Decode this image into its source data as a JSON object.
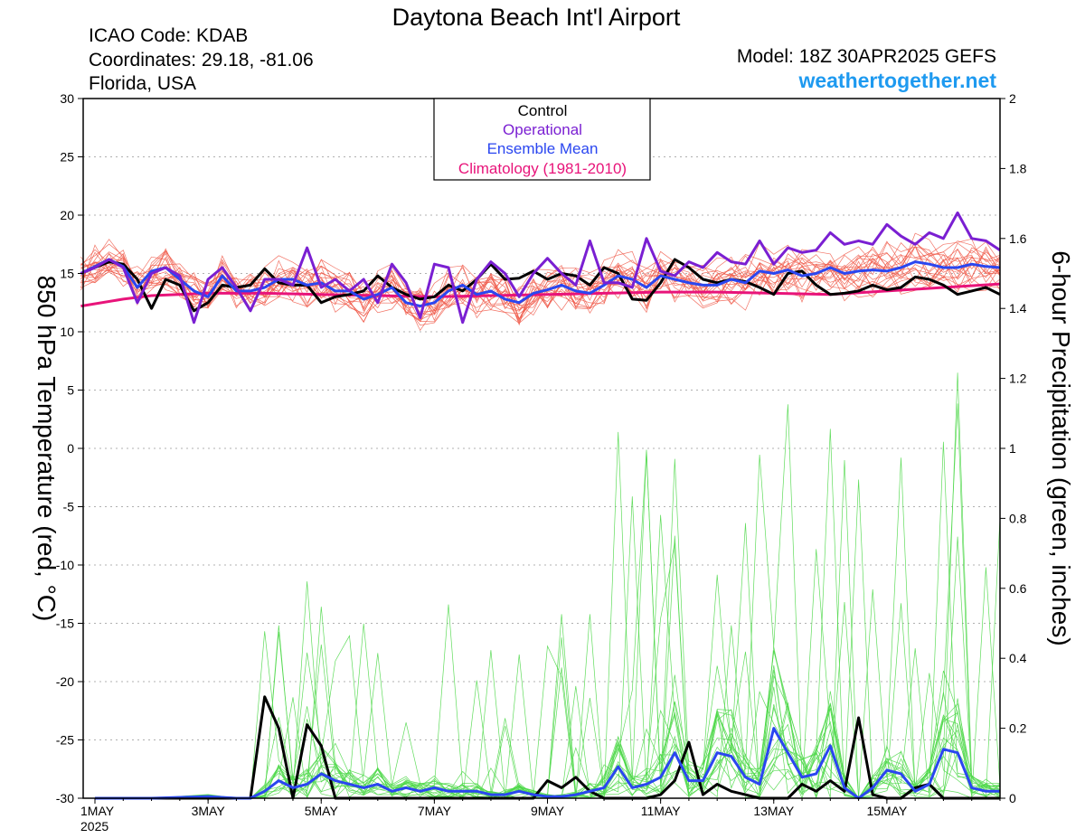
{
  "header": {
    "title": "Daytona Beach Int'l Airport",
    "icao": "ICAO Code: KDAB",
    "coords": "Coordinates: 29.18, -81.06",
    "region": "Florida, USA",
    "model": "Model: 18Z 30APR2025 GEFS",
    "site": "weathertogether.net"
  },
  "colors": {
    "control": "#000000",
    "operational": "#7a1fd2",
    "ensemble_mean": "#2a46f0",
    "climatology": "#e8147a",
    "members_temp": "#f05a4a",
    "members_precip": "#4fd84a",
    "site": "#1e9af0"
  },
  "chart_data": {
    "type": "line",
    "ylabel": "850 hPa Temperature (red, °C)",
    "ylabel_right": "6-hour Precipitation (green, inches)",
    "ylim": [
      -30,
      30
    ],
    "ylim_right": [
      0,
      2
    ],
    "yticks": [
      "30",
      "25",
      "20",
      "15",
      "10",
      "5",
      "0",
      "-5",
      "-10",
      "-15",
      "-20",
      "-25",
      "-30"
    ],
    "yticks_right": [
      "2",
      "1.8",
      "1.6",
      "1.4",
      "1.2",
      "1",
      "0.8",
      "0.6",
      "0.4",
      "0.2",
      "0"
    ],
    "x_range_days": [
      0,
      16
    ],
    "xticks": [
      {
        "day": 0,
        "label": "1MAY",
        "sub": "2025"
      },
      {
        "day": 2,
        "label": "3MAY"
      },
      {
        "day": 4,
        "label": "5MAY"
      },
      {
        "day": 6,
        "label": "7MAY"
      },
      {
        "day": 8,
        "label": "9MAY"
      },
      {
        "day": 10,
        "label": "11MAY"
      },
      {
        "day": 12,
        "label": "13MAY"
      },
      {
        "day": 14,
        "label": "15MAY"
      }
    ],
    "grid": true,
    "legend": {
      "placement": "top-center",
      "entries": [
        {
          "name": "Control",
          "color": "#000000"
        },
        {
          "name": "Operational",
          "color": "#7a1fd2"
        },
        {
          "name": "Ensemble Mean",
          "color": "#2a46f0"
        },
        {
          "name": "Climatology (1981-2010)",
          "color": "#e8147a"
        }
      ]
    },
    "series": [
      {
        "name": "Climatology (1981-2010)",
        "axis": "left",
        "color": "#e8147a",
        "x": [
          -0.25,
          0.5,
          1,
          2,
          3,
          4,
          5,
          6,
          7,
          8,
          9,
          10,
          11,
          12,
          13,
          14,
          15,
          16
        ],
        "values": [
          12.2,
          12.8,
          13.1,
          13.3,
          13.3,
          13.2,
          13.1,
          13.0,
          13.1,
          13.2,
          13.3,
          13.4,
          13.4,
          13.3,
          13.2,
          13.5,
          13.8,
          14.1
        ]
      },
      {
        "name": "Control",
        "axis": "left",
        "color": "#000000",
        "x": [
          -0.25,
          0,
          0.25,
          0.5,
          0.75,
          1,
          1.25,
          1.5,
          1.75,
          2,
          2.25,
          2.5,
          2.75,
          3,
          3.25,
          3.5,
          3.75,
          4,
          4.25,
          4.5,
          4.75,
          5,
          5.25,
          5.5,
          5.75,
          6,
          6.25,
          6.5,
          6.75,
          7,
          7.25,
          7.5,
          7.75,
          8,
          8.25,
          8.5,
          8.75,
          9,
          9.25,
          9.5,
          9.75,
          10,
          10.25,
          10.5,
          10.75,
          11,
          11.25,
          11.5,
          11.75,
          12,
          12.25,
          12.5,
          12.75,
          13,
          13.25,
          13.5,
          13.75,
          14,
          14.25,
          14.5,
          14.75,
          15,
          15.25,
          15.5,
          15.75,
          16
        ],
        "values": [
          15.0,
          15.5,
          16.0,
          15.8,
          14.5,
          12.0,
          14.5,
          14.0,
          11.8,
          12.5,
          14.0,
          13.8,
          14.0,
          15.4,
          14.2,
          14.0,
          14.0,
          12.5,
          13.0,
          13.2,
          13.5,
          14.8,
          13.8,
          13.2,
          12.8,
          13.0,
          14.0,
          13.5,
          14.5,
          15.8,
          14.5,
          14.6,
          15.2,
          14.5,
          15.0,
          14.8,
          14.0,
          15.5,
          15.0,
          12.8,
          12.7,
          14.2,
          16.2,
          15.5,
          14.5,
          14.2,
          14.5,
          14.3,
          13.8,
          13.2,
          15.0,
          15.2,
          14.0,
          13.2,
          13.3,
          13.5,
          14.0,
          13.6,
          13.8,
          14.7,
          14.5,
          14.0,
          13.2,
          13.5,
          13.8,
          13.2
        ]
      },
      {
        "name": "Ensemble Mean",
        "axis": "left",
        "color": "#2a46f0",
        "x": [
          -0.25,
          0,
          0.25,
          0.5,
          0.75,
          1,
          1.25,
          1.5,
          1.75,
          2,
          2.25,
          2.5,
          2.75,
          3,
          3.25,
          3.5,
          3.75,
          4,
          4.25,
          4.5,
          4.75,
          5,
          5.25,
          5.5,
          5.75,
          6,
          6.25,
          6.5,
          6.75,
          7,
          7.25,
          7.5,
          7.75,
          8,
          8.25,
          8.5,
          8.75,
          9,
          9.25,
          9.5,
          9.75,
          10,
          10.25,
          10.5,
          10.75,
          11,
          11.25,
          11.5,
          11.75,
          12,
          12.25,
          12.5,
          12.75,
          13,
          13.25,
          13.5,
          13.75,
          14,
          14.25,
          14.5,
          14.75,
          15,
          15.25,
          15.5,
          15.75,
          16
        ],
        "values": [
          15.0,
          15.6,
          16.2,
          15.6,
          13.8,
          15.2,
          15.5,
          14.5,
          13.5,
          13.0,
          14.8,
          13.5,
          13.5,
          13.8,
          14.5,
          14.5,
          14.0,
          14.2,
          13.5,
          13.5,
          12.8,
          13.2,
          13.8,
          12.5,
          12.2,
          12.5,
          13.5,
          14.0,
          13.2,
          13.5,
          12.8,
          12.5,
          13.3,
          13.6,
          14.0,
          13.5,
          13.3,
          14.0,
          14.8,
          14.5,
          13.8,
          14.8,
          14.5,
          14.2,
          14.0,
          14.0,
          14.5,
          14.2,
          15.2,
          15.0,
          15.3,
          14.8,
          15.0,
          15.5,
          15.0,
          15.2,
          15.3,
          15.2,
          15.5,
          16.0,
          15.8,
          15.5,
          15.5,
          15.8,
          15.6,
          15.5
        ]
      },
      {
        "name": "Operational",
        "axis": "left",
        "color": "#7a1fd2",
        "x": [
          -0.25,
          0,
          0.25,
          0.5,
          0.75,
          1,
          1.25,
          1.5,
          1.75,
          2,
          2.25,
          2.5,
          2.75,
          3,
          3.25,
          3.5,
          3.75,
          4,
          4.25,
          4.5,
          4.75,
          5,
          5.25,
          5.5,
          5.75,
          6,
          6.25,
          6.5,
          6.75,
          7,
          7.25,
          7.5,
          7.75,
          8,
          8.25,
          8.5,
          8.75,
          9,
          9.25,
          9.5,
          9.75,
          10,
          10.25,
          10.5,
          10.75,
          11,
          11.25,
          11.5,
          11.75,
          12,
          12.25,
          12.5,
          12.75,
          13,
          13.25,
          13.5,
          13.75,
          14,
          14.25,
          14.5,
          14.75,
          15,
          15.25,
          15.5,
          15.75,
          16
        ],
        "values": [
          15.0,
          15.5,
          16.2,
          15.5,
          12.5,
          15.0,
          15.5,
          14.8,
          10.8,
          14.5,
          15.5,
          13.8,
          11.8,
          14.5,
          14.5,
          14.0,
          17.2,
          13.8,
          14.5,
          13.5,
          14.5,
          12.5,
          15.8,
          14.2,
          11.2,
          15.8,
          15.5,
          10.8,
          14.5,
          16.0,
          15.0,
          13.0,
          15.0,
          16.3,
          15.0,
          14.0,
          17.8,
          14.2,
          14.2,
          13.8,
          18.0,
          15.2,
          14.8,
          16.0,
          15.5,
          16.8,
          16.0,
          15.8,
          17.8,
          15.8,
          17.2,
          16.8,
          17.0,
          18.5,
          17.5,
          17.8,
          17.5,
          19.2,
          18.2,
          17.5,
          18.5,
          18.0,
          20.2,
          18.0,
          17.8,
          17.0
        ]
      },
      {
        "name": "Control",
        "axis": "right",
        "color": "#000000",
        "x": [
          0,
          2,
          2.75,
          3,
          3.25,
          3.5,
          3.75,
          4,
          4.25,
          4.5,
          7.75,
          8,
          8.25,
          8.5,
          8.75,
          9,
          9.25,
          9.5,
          9.75,
          10,
          10.25,
          10.5,
          10.75,
          11,
          11.25,
          11.5,
          11.75,
          12,
          12.25,
          12.5,
          12.75,
          13,
          13.25,
          13.5,
          13.75,
          14,
          14.25,
          14.5,
          14.75,
          15,
          15.25,
          15.5,
          15.75,
          16
        ],
        "values": [
          0,
          0,
          0,
          0.29,
          0.2,
          0,
          0.21,
          0.15,
          0,
          0,
          0,
          0.05,
          0.03,
          0.06,
          0.02,
          0,
          0,
          0,
          0,
          0.01,
          0.05,
          0.16,
          0.01,
          0.04,
          0.02,
          0.01,
          0,
          0,
          0,
          0.04,
          0.02,
          0.05,
          0.02,
          0.23,
          0.01,
          0,
          0,
          0.03,
          0.04,
          0,
          0,
          0,
          0,
          0
        ]
      },
      {
        "name": "Ensemble Mean",
        "axis": "right",
        "color": "#2a46f0",
        "x": [
          0,
          1,
          2,
          2.5,
          2.75,
          3,
          3.25,
          3.5,
          3.75,
          4,
          4.25,
          4.5,
          4.75,
          5,
          5.25,
          5.5,
          5.75,
          6,
          6.25,
          6.5,
          6.75,
          7,
          7.25,
          7.5,
          7.75,
          8,
          8.25,
          8.5,
          8.75,
          9,
          9.25,
          9.5,
          9.75,
          10,
          10.25,
          10.5,
          10.75,
          11,
          11.25,
          11.5,
          11.75,
          12,
          12.25,
          12.5,
          12.75,
          13,
          13.25,
          13.5,
          13.75,
          14,
          14.25,
          14.5,
          14.75,
          15,
          15.25,
          15.5,
          15.75,
          16
        ],
        "values": [
          0,
          0,
          0.005,
          0,
          0,
          0.02,
          0.05,
          0.03,
          0.04,
          0.07,
          0.05,
          0.04,
          0.03,
          0.04,
          0.02,
          0.03,
          0.02,
          0.03,
          0.02,
          0.02,
          0.02,
          0.01,
          0.01,
          0.02,
          0.01,
          0.005,
          0.005,
          0.01,
          0.02,
          0.03,
          0.09,
          0.03,
          0.04,
          0.06,
          0.13,
          0.05,
          0.05,
          0.13,
          0.12,
          0.06,
          0.04,
          0.2,
          0.13,
          0.06,
          0.07,
          0.15,
          0.03,
          0,
          0.03,
          0.08,
          0.07,
          0.02,
          0.04,
          0.14,
          0.13,
          0.03,
          0.02,
          0.02
        ]
      }
    ],
    "ensemble_members_note": "",
    "member_count": 20
  }
}
